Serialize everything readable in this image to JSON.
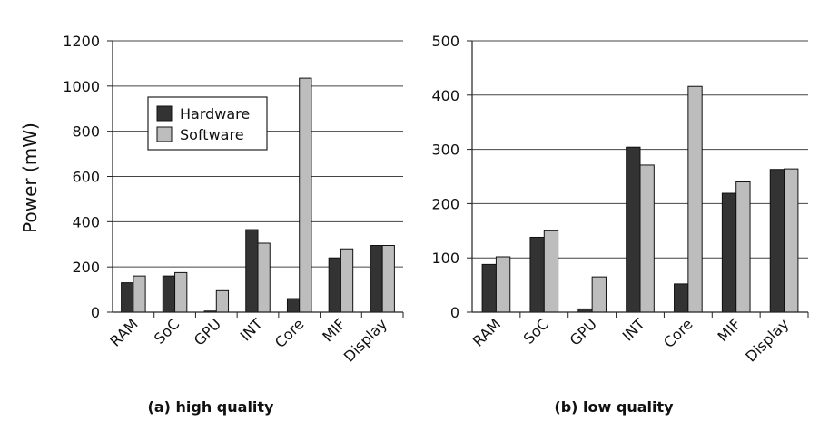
{
  "ylabel": "Power (mW)",
  "legend": {
    "hardware_label": "Hardware",
    "software_label": "Software",
    "hardware_color": "#333333",
    "software_color": "#bdbdbd"
  },
  "chart_data": [
    {
      "type": "bar",
      "caption": "(a) high quality",
      "categories": [
        "RAM",
        "SoC",
        "GPU",
        "INT",
        "Core",
        "MIF",
        "Display"
      ],
      "ylim": [
        0,
        1200
      ],
      "yticks": [
        0,
        200,
        400,
        600,
        800,
        1000,
        1200
      ],
      "grid": true,
      "legend_placement": "top-left",
      "series": [
        {
          "name": "Hardware",
          "values": [
            130,
            160,
            5,
            365,
            60,
            240,
            295
          ]
        },
        {
          "name": "Software",
          "values": [
            160,
            175,
            95,
            305,
            1035,
            280,
            295
          ]
        }
      ]
    },
    {
      "type": "bar",
      "caption": "(b) low quality",
      "categories": [
        "RAM",
        "SoC",
        "GPU",
        "INT",
        "Core",
        "MIF",
        "Display"
      ],
      "ylim": [
        0,
        500
      ],
      "yticks": [
        0,
        100,
        200,
        300,
        400,
        500
      ],
      "grid": true,
      "series": [
        {
          "name": "Hardware",
          "values": [
            88,
            138,
            6,
            304,
            52,
            219,
            263
          ]
        },
        {
          "name": "Software",
          "values": [
            102,
            150,
            65,
            271,
            416,
            240,
            264
          ]
        }
      ]
    }
  ]
}
